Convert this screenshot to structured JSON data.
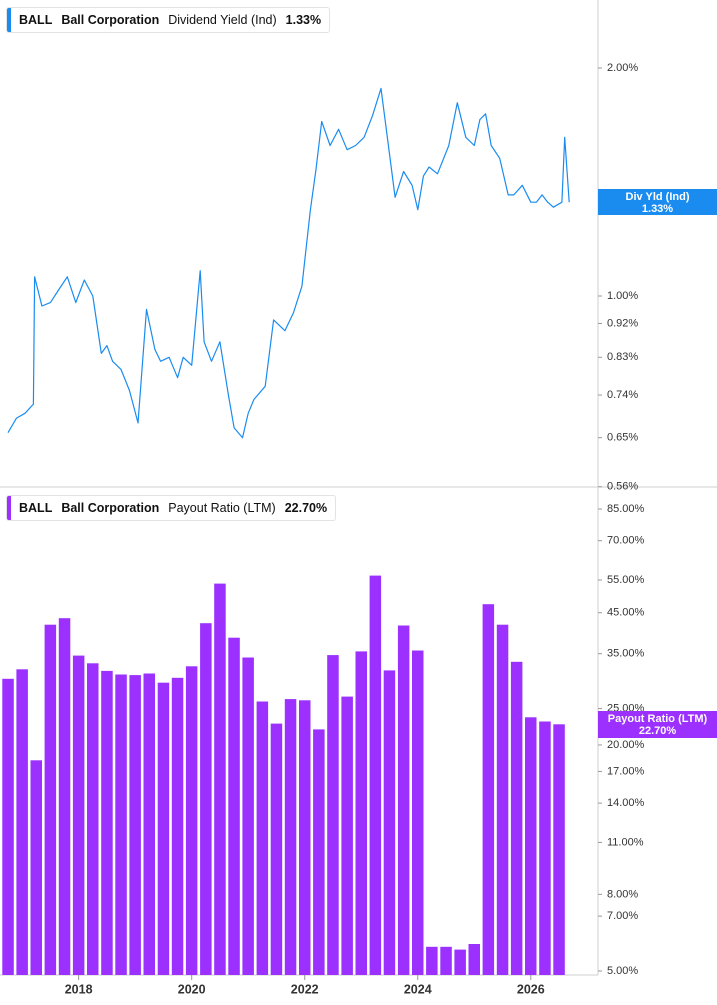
{
  "panels": {
    "top": {
      "legend": {
        "ticker": "BALL",
        "company": "Ball Corporation",
        "metric": "Dividend Yield (Ind)",
        "value": "1.33%"
      },
      "tag": {
        "label": "Div Yld (Ind)",
        "value": "1.33%"
      },
      "color": "#1a8cf0"
    },
    "bottom": {
      "legend": {
        "ticker": "BALL",
        "company": "Ball Corporation",
        "metric": "Payout Ratio (LTM)",
        "value": "22.70%"
      },
      "tag": {
        "label": "Payout Ratio (LTM)",
        "value": "22.70%"
      },
      "color": "#9b30ff"
    }
  },
  "chart_data": [
    {
      "type": "line",
      "scale": "log",
      "series": [
        {
          "name": "Dividend Yield (Ind)",
          "x": [
            2016.75,
            2016.9,
            2017.05,
            2017.2,
            2017.22,
            2017.35,
            2017.5,
            2017.65,
            2017.8,
            2017.95,
            2018.1,
            2018.25,
            2018.4,
            2018.5,
            2018.6,
            2018.75,
            2018.9,
            2019.05,
            2019.2,
            2019.35,
            2019.45,
            2019.6,
            2019.75,
            2019.85,
            2020.0,
            2020.15,
            2020.22,
            2020.35,
            2020.5,
            2020.65,
            2020.75,
            2020.9,
            2021.0,
            2021.1,
            2021.3,
            2021.45,
            2021.65,
            2021.8,
            2021.95,
            2022.1,
            2022.2,
            2022.3,
            2022.45,
            2022.6,
            2022.75,
            2022.9,
            2023.05,
            2023.2,
            2023.35,
            2023.5,
            2023.6,
            2023.75,
            2023.9,
            2024.0,
            2024.1,
            2024.2,
            2024.35,
            2024.55,
            2024.7,
            2024.85,
            2025.0,
            2025.1,
            2025.2,
            2025.3,
            2025.45,
            2025.6,
            2025.7,
            2025.85,
            2026.0,
            2026.1,
            2026.2,
            2026.3,
            2026.4,
            2026.55,
            2026.6,
            2026.68
          ],
          "y": [
            0.66,
            0.69,
            0.7,
            0.72,
            1.06,
            0.97,
            0.98,
            1.02,
            1.06,
            0.98,
            1.05,
            1.0,
            0.84,
            0.86,
            0.82,
            0.8,
            0.75,
            0.68,
            0.96,
            0.85,
            0.82,
            0.83,
            0.78,
            0.83,
            0.81,
            1.08,
            0.87,
            0.82,
            0.87,
            0.74,
            0.67,
            0.65,
            0.7,
            0.73,
            0.76,
            0.93,
            0.9,
            0.95,
            1.03,
            1.3,
            1.47,
            1.7,
            1.58,
            1.66,
            1.56,
            1.58,
            1.62,
            1.73,
            1.88,
            1.54,
            1.35,
            1.46,
            1.4,
            1.3,
            1.44,
            1.48,
            1.45,
            1.58,
            1.8,
            1.62,
            1.58,
            1.71,
            1.74,
            1.58,
            1.52,
            1.36,
            1.36,
            1.4,
            1.33,
            1.33,
            1.36,
            1.33,
            1.31,
            1.33,
            1.62,
            1.33
          ]
        }
      ],
      "yticks": [
        "2.00%",
        "1.00%",
        "0.92%",
        "0.83%",
        "0.74%",
        "0.65%",
        "0.56%"
      ],
      "ylim": [
        0.56,
        2.5
      ]
    },
    {
      "type": "bar",
      "scale": "log",
      "series": [
        {
          "name": "Payout Ratio (LTM)",
          "x": [
            2016.75,
            2017.0,
            2017.25,
            2017.5,
            2017.75,
            2018.0,
            2018.25,
            2018.5,
            2018.75,
            2019.0,
            2019.25,
            2019.5,
            2019.75,
            2020.0,
            2020.25,
            2020.5,
            2020.75,
            2021.0,
            2021.25,
            2021.5,
            2021.75,
            2022.0,
            2022.25,
            2022.5,
            2022.75,
            2023.0,
            2023.25,
            2023.5,
            2023.75,
            2024.0,
            2024.25,
            2024.5,
            2024.75,
            2025.0,
            2025.25,
            2025.5,
            2025.75,
            2026.0,
            2026.25,
            2026.5
          ],
          "values": [
            30.0,
            31.8,
            18.2,
            41.8,
            43.5,
            34.6,
            33.0,
            31.5,
            30.8,
            30.7,
            31.0,
            29.3,
            30.2,
            32.4,
            42.2,
            53.8,
            38.6,
            34.2,
            26.1,
            22.8,
            26.5,
            26.3,
            22.0,
            34.7,
            26.9,
            35.5,
            56.5,
            31.6,
            41.6,
            35.7,
            5.8,
            5.8,
            5.7,
            5.9,
            47.4,
            41.8,
            33.3,
            23.7,
            23.1,
            22.7
          ]
        }
      ],
      "yticks": [
        "85.00%",
        "70.00%",
        "55.00%",
        "45.00%",
        "35.00%",
        "25.00%",
        "20.00%",
        "17.00%",
        "14.00%",
        "11.00%",
        "8.00%",
        "7.00%",
        "5.00%"
      ],
      "ylim": [
        5.0,
        85.0
      ]
    }
  ],
  "x_axis": {
    "ticks": [
      "2018",
      "2020",
      "2022",
      "2024",
      "2026"
    ],
    "tick_values": [
      2018,
      2020,
      2022,
      2024,
      2026
    ],
    "xlim": [
      2016.75,
      2026.8
    ]
  }
}
